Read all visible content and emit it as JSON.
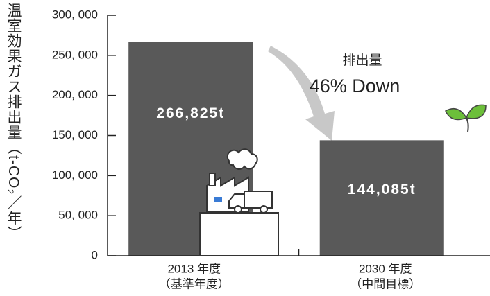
{
  "chart_data": {
    "type": "bar",
    "y_label": "温室効果ガス排出量（t-CO₂／年）",
    "categories": [
      [
        "2013 年度",
        "（基準年度）"
      ],
      [
        "2030 年度",
        "（中間目標）"
      ]
    ],
    "values": [
      266825,
      144085
    ],
    "value_labels": [
      "266,825t",
      "144,085t"
    ],
    "color": "#595959",
    "annotation": [
      "排出量",
      "46% Down"
    ],
    "ylim": [
      0,
      300000
    ],
    "yticks": [
      0,
      {
        "value": 50000,
        "label": "50, 000"
      },
      {
        "value": 100000,
        "label": "100, 000"
      },
      {
        "value": 150000,
        "label": "150, 000"
      },
      {
        "value": 200000,
        "label": "200, 000"
      },
      {
        "value": 250000,
        "label": "250, 000"
      },
      {
        "value": 300000,
        "label": "300, 000"
      }
    ]
  }
}
